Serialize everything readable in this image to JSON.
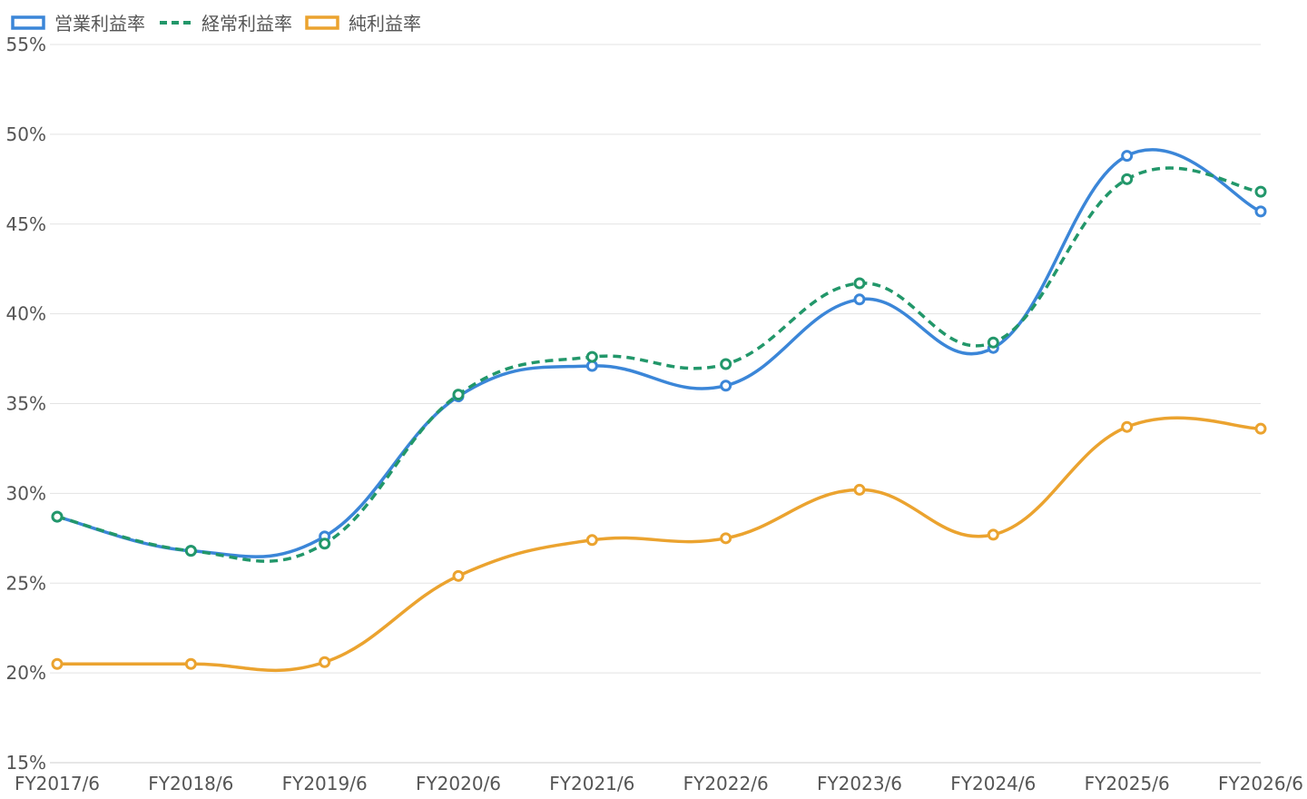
{
  "chart_data": {
    "type": "line",
    "categories": [
      "FY2017/6",
      "FY2018/6",
      "FY2019/6",
      "FY2020/6",
      "FY2021/6",
      "FY2022/6",
      "FY2023/6",
      "FY2024/6",
      "FY2025/6",
      "FY2026/6"
    ],
    "series": [
      {
        "name": "営業利益率",
        "color": "#3b86d8",
        "line_style": "solid",
        "values": [
          28.7,
          26.8,
          27.6,
          35.4,
          37.1,
          36.0,
          40.8,
          38.1,
          48.8,
          45.7
        ]
      },
      {
        "name": "経常利益率",
        "color": "#22976a",
        "line_style": "dashed",
        "values": [
          28.7,
          26.8,
          27.2,
          35.5,
          37.6,
          37.2,
          41.7,
          38.4,
          47.5,
          46.8
        ]
      },
      {
        "name": "純利益率",
        "color": "#eba32f",
        "line_style": "solid",
        "values": [
          20.5,
          20.5,
          20.6,
          25.4,
          27.4,
          27.5,
          30.2,
          27.7,
          33.7,
          33.6
        ]
      }
    ],
    "ylim": [
      15,
      55
    ],
    "yticks": [
      {
        "value": 15,
        "label": "15%"
      },
      {
        "value": 20,
        "label": "20%"
      },
      {
        "value": 25,
        "label": "25%"
      },
      {
        "value": 30,
        "label": "30%"
      },
      {
        "value": 35,
        "label": "35%"
      },
      {
        "value": 40,
        "label": "40%"
      },
      {
        "value": 45,
        "label": "45%"
      },
      {
        "value": 50,
        "label": "50%"
      },
      {
        "value": 55,
        "label": "55%"
      }
    ],
    "grid": true,
    "legend": "top-left"
  }
}
